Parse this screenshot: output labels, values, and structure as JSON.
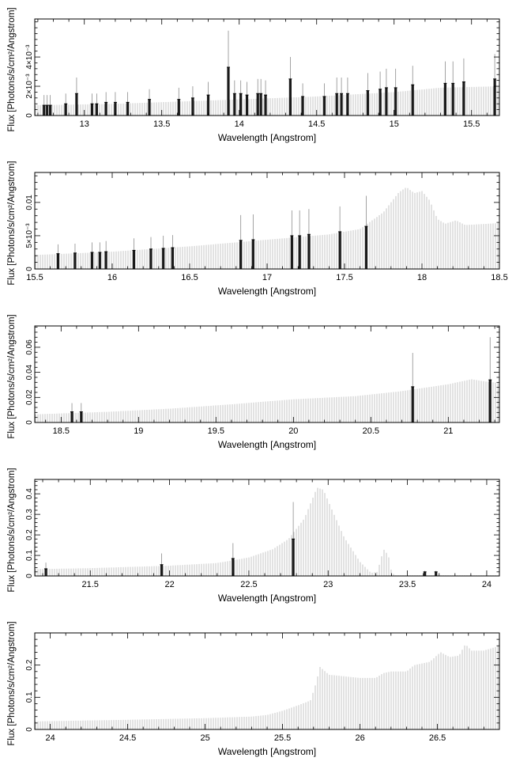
{
  "chart_data": [
    {
      "type": "bar",
      "xlabel": "Wavelength [Angstrom]",
      "ylabel": "Flux [Photons/s/cm²/Angstrom]",
      "xlim": [
        12.68,
        15.68
      ],
      "ylim": [
        0,
        0.0066
      ],
      "xticks": [
        13,
        13.5,
        14,
        14.5,
        15,
        15.5
      ],
      "xtick_labels": [
        "13",
        "13.5",
        "14",
        "14.5",
        "15",
        "15.5"
      ],
      "yticks": [
        0,
        0.002,
        0.004
      ],
      "ytick_labels": [
        "0",
        "2×10⁻³",
        "4×10⁻³"
      ],
      "continuum": [
        [
          12.68,
          0.0007
        ],
        [
          13.2,
          0.0008
        ],
        [
          13.6,
          0.00095
        ],
        [
          14.0,
          0.0011
        ],
        [
          14.5,
          0.0013
        ],
        [
          15.0,
          0.0016
        ],
        [
          15.3,
          0.0019
        ],
        [
          15.68,
          0.002
        ]
      ],
      "lines": [
        {
          "x": 12.74,
          "y": 0.0007,
          "err": 0.0007
        },
        {
          "x": 12.76,
          "y": 0.0007,
          "err": 0.0007
        },
        {
          "x": 12.78,
          "y": 0.0007,
          "err": 0.0007
        },
        {
          "x": 12.88,
          "y": 0.0008,
          "err": 0.0007
        },
        {
          "x": 12.95,
          "y": 0.0015,
          "err": 0.0011
        },
        {
          "x": 13.05,
          "y": 0.0008,
          "err": 0.0007
        },
        {
          "x": 13.08,
          "y": 0.0008,
          "err": 0.0007
        },
        {
          "x": 13.14,
          "y": 0.0009,
          "err": 0.0007
        },
        {
          "x": 13.2,
          "y": 0.0009,
          "err": 0.0007
        },
        {
          "x": 13.28,
          "y": 0.0009,
          "err": 0.0007
        },
        {
          "x": 13.42,
          "y": 0.0011,
          "err": 0.0007
        },
        {
          "x": 13.61,
          "y": 0.0011,
          "err": 0.0008
        },
        {
          "x": 13.7,
          "y": 0.0012,
          "err": 0.0008
        },
        {
          "x": 13.8,
          "y": 0.0014,
          "err": 0.0009
        },
        {
          "x": 13.93,
          "y": 0.0033,
          "err": 0.0025
        },
        {
          "x": 13.97,
          "y": 0.0015,
          "err": 0.0009
        },
        {
          "x": 14.01,
          "y": 0.0015,
          "err": 0.0009
        },
        {
          "x": 14.05,
          "y": 0.0014,
          "err": 0.0009
        },
        {
          "x": 14.12,
          "y": 0.0015,
          "err": 0.001
        },
        {
          "x": 14.14,
          "y": 0.0015,
          "err": 0.001
        },
        {
          "x": 14.17,
          "y": 0.0014,
          "err": 0.001
        },
        {
          "x": 14.33,
          "y": 0.0025,
          "err": 0.0015
        },
        {
          "x": 14.41,
          "y": 0.0013,
          "err": 0.0009
        },
        {
          "x": 14.55,
          "y": 0.0013,
          "err": 0.0009
        },
        {
          "x": 14.63,
          "y": 0.0015,
          "err": 0.0011
        },
        {
          "x": 14.66,
          "y": 0.0015,
          "err": 0.0011
        },
        {
          "x": 14.7,
          "y": 0.0015,
          "err": 0.0011
        },
        {
          "x": 14.83,
          "y": 0.0017,
          "err": 0.0012
        },
        {
          "x": 14.91,
          "y": 0.0018,
          "err": 0.0012
        },
        {
          "x": 14.95,
          "y": 0.0019,
          "err": 0.0013
        },
        {
          "x": 15.01,
          "y": 0.0019,
          "err": 0.0013
        },
        {
          "x": 15.12,
          "y": 0.0021,
          "err": 0.0013
        },
        {
          "x": 15.33,
          "y": 0.0022,
          "err": 0.0015
        },
        {
          "x": 15.38,
          "y": 0.0022,
          "err": 0.0015
        },
        {
          "x": 15.45,
          "y": 0.0023,
          "err": 0.0016
        },
        {
          "x": 15.65,
          "y": 0.0025,
          "err": 0.0017
        }
      ]
    },
    {
      "type": "bar",
      "xlabel": "Wavelength [Angstrom]",
      "ylabel": "Flux [Photons/s/cm²/Angstrom]",
      "xlim": [
        15.5,
        18.5
      ],
      "ylim": [
        0,
        0.0145
      ],
      "xticks": [
        15.5,
        16,
        16.5,
        17,
        17.5,
        18,
        18.5
      ],
      "xtick_labels": [
        "15.5",
        "16",
        "16.5",
        "17",
        "17.5",
        "18",
        "18.5"
      ],
      "yticks": [
        0,
        0.005,
        0.01
      ],
      "ytick_labels": [
        "0",
        "5×10⁻³",
        "0.01"
      ],
      "continuum": [
        [
          15.5,
          0.0021
        ],
        [
          16.0,
          0.0026
        ],
        [
          16.5,
          0.0034
        ],
        [
          17.0,
          0.0044
        ],
        [
          17.4,
          0.0052
        ],
        [
          17.6,
          0.006
        ],
        [
          17.75,
          0.0085
        ],
        [
          17.85,
          0.0115
        ],
        [
          17.9,
          0.0123
        ],
        [
          17.95,
          0.0114
        ],
        [
          18.0,
          0.0117
        ],
        [
          18.05,
          0.0103
        ],
        [
          18.1,
          0.0075
        ],
        [
          18.15,
          0.0068
        ],
        [
          18.22,
          0.0073
        ],
        [
          18.28,
          0.0066
        ],
        [
          18.5,
          0.0069
        ]
      ],
      "lines": [
        {
          "x": 15.65,
          "y": 0.0023,
          "err": 0.0014
        },
        {
          "x": 15.76,
          "y": 0.0024,
          "err": 0.0014
        },
        {
          "x": 15.87,
          "y": 0.0025,
          "err": 0.0015
        },
        {
          "x": 15.92,
          "y": 0.0025,
          "err": 0.0015
        },
        {
          "x": 15.96,
          "y": 0.0026,
          "err": 0.0016
        },
        {
          "x": 16.14,
          "y": 0.0028,
          "err": 0.0018
        },
        {
          "x": 16.25,
          "y": 0.003,
          "err": 0.0018
        },
        {
          "x": 16.33,
          "y": 0.0031,
          "err": 0.0019
        },
        {
          "x": 16.39,
          "y": 0.0032,
          "err": 0.0019
        },
        {
          "x": 16.83,
          "y": 0.0043,
          "err": 0.0038
        },
        {
          "x": 16.91,
          "y": 0.0044,
          "err": 0.0038
        },
        {
          "x": 17.16,
          "y": 0.005,
          "err": 0.0038
        },
        {
          "x": 17.21,
          "y": 0.005,
          "err": 0.0038
        },
        {
          "x": 17.27,
          "y": 0.0052,
          "err": 0.0038
        },
        {
          "x": 17.47,
          "y": 0.0056,
          "err": 0.0038
        },
        {
          "x": 17.64,
          "y": 0.0064,
          "err": 0.0046
        }
      ]
    },
    {
      "type": "bar",
      "xlabel": "Wavelength [Angstrom]",
      "ylabel": "Flux [Photons/s/cm²/Angstrom]",
      "xlim": [
        18.33,
        21.33
      ],
      "ylim": [
        0,
        0.077
      ],
      "xticks": [
        18.5,
        19,
        19.5,
        20,
        20.5,
        21
      ],
      "xtick_labels": [
        "18.5",
        "19",
        "19.5",
        "20",
        "20.5",
        "21"
      ],
      "yticks": [
        0,
        0.02,
        0.04,
        0.06
      ],
      "ytick_labels": [
        "0",
        "0.02",
        "0.04",
        "0.06"
      ],
      "continuum": [
        [
          18.33,
          0.0065
        ],
        [
          18.8,
          0.0085
        ],
        [
          19.2,
          0.011
        ],
        [
          19.6,
          0.0145
        ],
        [
          20.0,
          0.0185
        ],
        [
          20.4,
          0.021
        ],
        [
          20.7,
          0.025
        ],
        [
          21.0,
          0.0305
        ],
        [
          21.15,
          0.0345
        ],
        [
          21.25,
          0.0325
        ],
        [
          21.33,
          0.0315
        ]
      ],
      "lines": [
        {
          "x": 18.57,
          "y": 0.0085,
          "err": 0.007
        },
        {
          "x": 18.63,
          "y": 0.0085,
          "err": 0.007
        },
        {
          "x": 20.77,
          "y": 0.0285,
          "err": 0.027
        },
        {
          "x": 21.27,
          "y": 0.034,
          "err": 0.034
        }
      ]
    },
    {
      "type": "bar",
      "xlabel": "Wavelength [Angstrom]",
      "ylabel": "Flux [Photons/s/cm²/Angstrom]",
      "xlim": [
        21.15,
        24.08
      ],
      "ylim": [
        0,
        0.47
      ],
      "xticks": [
        21.5,
        22,
        22.5,
        23,
        23.5,
        24
      ],
      "xtick_labels": [
        "21.5",
        "22",
        "22.5",
        "23",
        "23.5",
        "24"
      ],
      "yticks": [
        0,
        0.1,
        0.2,
        0.3,
        0.4
      ],
      "ytick_labels": [
        "0",
        "0.1",
        "0.2",
        "0.3",
        "0.4"
      ],
      "continuum": [
        [
          21.15,
          0.033
        ],
        [
          21.5,
          0.038
        ],
        [
          22.0,
          0.05
        ],
        [
          22.3,
          0.063
        ],
        [
          22.5,
          0.09
        ],
        [
          22.65,
          0.13
        ],
        [
          22.75,
          0.18
        ],
        [
          22.85,
          0.28
        ],
        [
          22.93,
          0.43
        ],
        [
          22.97,
          0.42
        ],
        [
          23.02,
          0.33
        ],
        [
          23.1,
          0.19
        ],
        [
          23.2,
          0.07
        ],
        [
          23.27,
          0.015
        ],
        [
          23.31,
          0.02
        ],
        [
          23.35,
          0.13
        ],
        [
          23.38,
          0.1
        ],
        [
          23.4,
          0.02
        ],
        [
          23.42,
          0.003
        ],
        [
          24.08,
          0.003
        ]
      ],
      "lines": [
        {
          "x": 21.22,
          "y": 0.035,
          "err": 0.03
        },
        {
          "x": 21.95,
          "y": 0.055,
          "err": 0.055
        },
        {
          "x": 22.4,
          "y": 0.085,
          "err": 0.075
        },
        {
          "x": 22.78,
          "y": 0.18,
          "err": 0.18
        },
        {
          "x": 23.61,
          "y": 0.02,
          "err": 0.005
        },
        {
          "x": 23.68,
          "y": 0.02,
          "err": 0.005
        }
      ]
    },
    {
      "type": "area",
      "xlabel": "Wavelength [Angstrom]",
      "ylabel": "Flux [Photons/s/cm²/Angstrom]",
      "xlim": [
        23.9,
        26.9
      ],
      "ylim": [
        0,
        0.3
      ],
      "xticks": [
        24,
        24.5,
        25,
        25.5,
        26,
        26.5
      ],
      "xtick_labels": [
        "24",
        "24.5",
        "25",
        "25.5",
        "26",
        "26.5"
      ],
      "yticks": [
        0,
        0.1,
        0.2
      ],
      "ytick_labels": [
        "0",
        "0.1",
        "0.2"
      ],
      "continuum": [
        [
          23.9,
          0.025
        ],
        [
          24.5,
          0.03
        ],
        [
          25.0,
          0.035
        ],
        [
          25.3,
          0.04
        ],
        [
          25.4,
          0.045
        ],
        [
          25.5,
          0.058
        ],
        [
          25.6,
          0.075
        ],
        [
          25.68,
          0.09
        ],
        [
          25.72,
          0.15
        ],
        [
          25.74,
          0.195
        ],
        [
          25.8,
          0.17
        ],
        [
          25.9,
          0.165
        ],
        [
          26.0,
          0.16
        ],
        [
          26.1,
          0.16
        ],
        [
          26.15,
          0.175
        ],
        [
          26.2,
          0.18
        ],
        [
          26.3,
          0.18
        ],
        [
          26.35,
          0.2
        ],
        [
          26.45,
          0.21
        ],
        [
          26.52,
          0.24
        ],
        [
          26.58,
          0.225
        ],
        [
          26.64,
          0.23
        ],
        [
          26.68,
          0.265
        ],
        [
          26.72,
          0.245
        ],
        [
          26.8,
          0.245
        ],
        [
          26.9,
          0.26
        ]
      ],
      "lines": []
    }
  ]
}
